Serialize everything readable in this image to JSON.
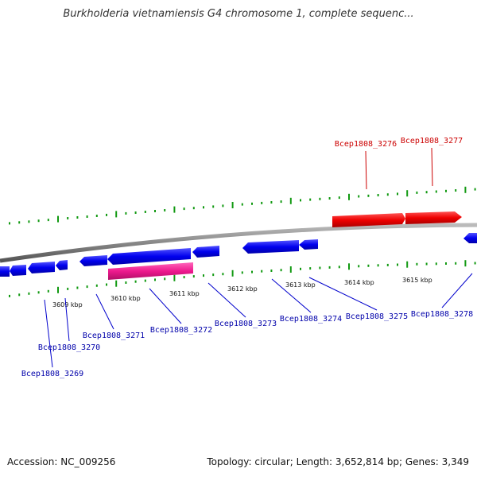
{
  "title": "Burkholderia vietnamiensis G4 chromosome 1, complete sequenc...",
  "footer": {
    "accession": "Accession: NC_009256",
    "stats": "Topology: circular; Length: 3,652,814 bp; Genes: 3,349"
  },
  "colors": {
    "forward_gene": "#dd0000",
    "reverse_gene": "#0000dd",
    "selected_gene": "#e8188c",
    "tick": "#119911",
    "backbone": "#888888",
    "reverse_label": "#0000aa",
    "forward_label": "#cc0000"
  },
  "kbp_labels": [
    "3609 kbp",
    "3610 kbp",
    "3611 kbp",
    "3612 kbp",
    "3613 kbp",
    "3614 kbp",
    "3615 kbp"
  ],
  "forward_genes": [
    {
      "label": "Bcep1808_3276"
    },
    {
      "label": "Bcep1808_3277"
    }
  ],
  "reverse_genes": [
    {
      "label": "Bcep1808_3269"
    },
    {
      "label": "Bcep1808_3270"
    },
    {
      "label": "Bcep1808_3271"
    },
    {
      "label": "Bcep1808_3272"
    },
    {
      "label": "Bcep1808_3273"
    },
    {
      "label": "Bcep1808_3274"
    },
    {
      "label": "Bcep1808_3275"
    },
    {
      "label": "Bcep1808_3278"
    }
  ]
}
